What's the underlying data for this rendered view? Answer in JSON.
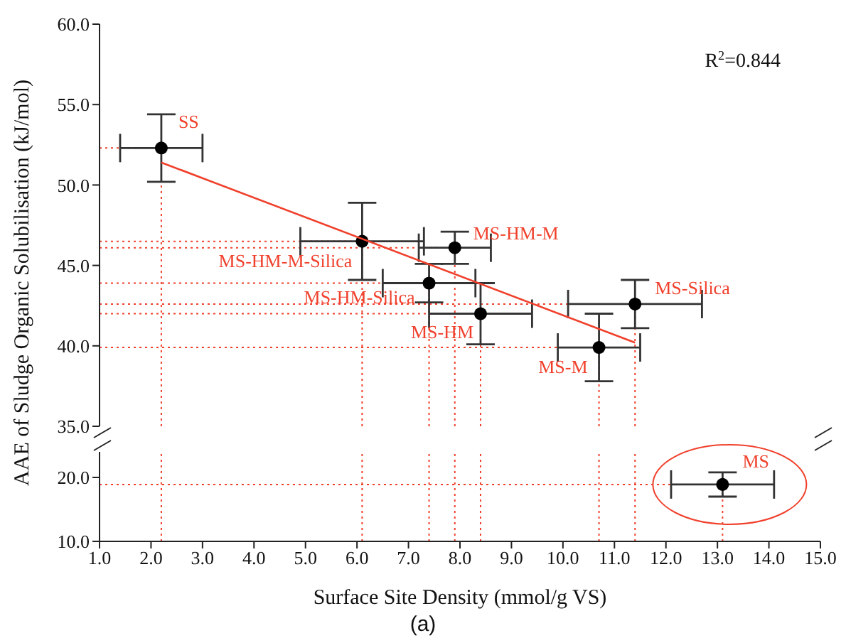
{
  "chart_data": [
    {
      "type": "scatter",
      "ylabel": "AAE of Sludge Organic Solubilisation (kJ/mol)",
      "marker": "circle",
      "tick_labels": "y",
      "xlim": [
        1,
        15
      ],
      "ylim": [
        35,
        60
      ],
      "yticks": [
        {
          "value": 35,
          "label": "35.0"
        },
        {
          "value": 40,
          "label": "40.0"
        },
        {
          "value": 45,
          "label": "45.0"
        },
        {
          "value": 50,
          "label": "50.0"
        },
        {
          "value": 55,
          "label": "55.0"
        },
        {
          "value": 60,
          "label": "60.0"
        }
      ],
      "series": [
        {
          "type": "scatter",
          "color": "#000000",
          "x": [
            2.2,
            6.1,
            7.9,
            7.4,
            8.4,
            11.4,
            10.7
          ],
          "values": [
            52.3,
            46.5,
            46.1,
            43.9,
            42.0,
            42.6,
            39.9
          ],
          "errors": [
            2.1,
            2.4,
            1.0,
            1.2,
            1.9,
            1.5,
            2.1
          ],
          "xerrors": [
            0.8,
            1.2,
            0.7,
            0.9,
            1.0,
            1.3,
            0.8
          ]
        },
        {
          "type": "line",
          "marker": "none",
          "color": "#f0402c",
          "x": [
            2.2,
            11.4
          ],
          "values": [
            51.4,
            40.2
          ]
        }
      ],
      "ref_lines": [
        {
          "axis": "x",
          "value": 2.2,
          "color": "#f0402c",
          "line_style": "dotted"
        },
        {
          "axis": "x",
          "value": 6.1,
          "color": "#f0402c",
          "line_style": "dotted"
        },
        {
          "axis": "x",
          "value": 7.4,
          "color": "#f0402c",
          "line_style": "dotted"
        },
        {
          "axis": "x",
          "value": 7.9,
          "color": "#f0402c",
          "line_style": "dotted"
        },
        {
          "axis": "x",
          "value": 8.4,
          "color": "#f0402c",
          "line_style": "dotted"
        },
        {
          "axis": "x",
          "value": 10.7,
          "color": "#f0402c",
          "line_style": "dotted"
        },
        {
          "axis": "x",
          "value": 11.4,
          "color": "#f0402c",
          "line_style": "dotted"
        },
        {
          "axis": "y",
          "value": 52.3,
          "color": "#f0402c",
          "line_style": "dotted"
        },
        {
          "axis": "y",
          "value": 46.5,
          "color": "#f0402c",
          "line_style": "dotted"
        },
        {
          "axis": "y",
          "value": 46.1,
          "color": "#f0402c",
          "line_style": "dotted"
        },
        {
          "axis": "y",
          "value": 43.9,
          "color": "#f0402c",
          "line_style": "dotted"
        },
        {
          "axis": "y",
          "value": 42.0,
          "color": "#f0402c",
          "line_style": "dotted"
        },
        {
          "axis": "y",
          "value": 42.6,
          "color": "#f0402c",
          "line_style": "dotted"
        },
        {
          "axis": "y",
          "value": 39.9,
          "color": "#f0402c",
          "line_style": "dotted"
        }
      ],
      "annotations": [
        "R$^{2}$=0.844",
        {
          "text": "SS",
          "x": 2.2,
          "y": 52.3
        },
        {
          "text": "MS-HM-M-Silica",
          "x": 6.1,
          "y": 46.5
        },
        {
          "text": "MS-HM-M",
          "x": 7.9,
          "y": 46.1
        },
        {
          "text": "MS-HM-Silica",
          "x": 7.4,
          "y": 43.9
        },
        {
          "text": "MS-HM",
          "x": 8.4,
          "y": 42.0
        },
        {
          "text": "MS-Silica",
          "x": 11.4,
          "y": 42.6
        },
        {
          "text": "MS-M",
          "x": 10.7,
          "y": 39.9
        }
      ]
    },
    {
      "type": "scatter",
      "xlabel": "Surface Site Density (mmol/g VS)",
      "marker": "circle",
      "xlim": [
        1,
        15
      ],
      "xticks": [
        {
          "value": 1,
          "label": "1.0"
        },
        {
          "value": 2,
          "label": "2.0"
        },
        {
          "value": 3,
          "label": "3.0"
        },
        {
          "value": 4,
          "label": "4.0"
        },
        {
          "value": 5,
          "label": "5.0"
        },
        {
          "value": 6,
          "label": "6.0"
        },
        {
          "value": 7,
          "label": "7.0"
        },
        {
          "value": 8,
          "label": "8.0"
        },
        {
          "value": 9,
          "label": "9.0"
        },
        {
          "value": 10,
          "label": "10.0"
        },
        {
          "value": 11,
          "label": "11.0"
        },
        {
          "value": 12,
          "label": "12.0"
        },
        {
          "value": 13,
          "label": "13.0"
        },
        {
          "value": 14,
          "label": "14.0"
        },
        {
          "value": 15,
          "label": "15.0"
        }
      ],
      "ylim": [
        10,
        24
      ],
      "yticks": [
        {
          "value": 10,
          "label": "10.0"
        },
        {
          "value": 20,
          "label": "20.0"
        }
      ],
      "series": [
        {
          "type": "scatter",
          "color": "#000000",
          "x": [
            13.1
          ],
          "values": [
            18.9
          ],
          "errors": [
            1.9
          ],
          "xerrors": [
            1.0
          ]
        }
      ],
      "ref_lines": [
        {
          "axis": "x",
          "value": 2.2,
          "color": "#f0402c",
          "line_style": "dotted"
        },
        {
          "axis": "x",
          "value": 6.1,
          "color": "#f0402c",
          "line_style": "dotted"
        },
        {
          "axis": "x",
          "value": 7.4,
          "color": "#f0402c",
          "line_style": "dotted"
        },
        {
          "axis": "x",
          "value": 7.9,
          "color": "#f0402c",
          "line_style": "dotted"
        },
        {
          "axis": "x",
          "value": 8.4,
          "color": "#f0402c",
          "line_style": "dotted"
        },
        {
          "axis": "x",
          "value": 10.7,
          "color": "#f0402c",
          "line_style": "dotted"
        },
        {
          "axis": "x",
          "value": 11.4,
          "color": "#f0402c",
          "line_style": "dotted"
        },
        {
          "axis": "x",
          "value": 13.1,
          "color": "#f0402c",
          "line_style": "dotted"
        },
        {
          "axis": "y",
          "value": 18.9,
          "color": "#f0402c",
          "line_style": "dotted"
        }
      ],
      "annotations": [
        "(a)",
        {
          "text": "MS",
          "x": 13.1,
          "y": 18.9
        }
      ]
    }
  ]
}
